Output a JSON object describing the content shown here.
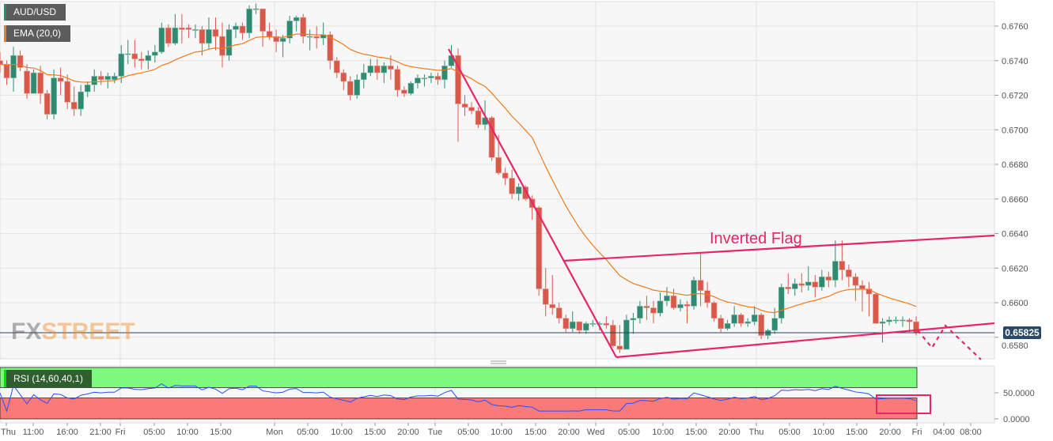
{
  "legend": {
    "symbol": "AUD/USD",
    "indicator": "EMA (20,0)",
    "rsi": "RSI (14,60,40,1)"
  },
  "watermark": {
    "fx": "FX",
    "street": "STREET"
  },
  "annotation": "Inverted Flag",
  "last_price": "0.65825",
  "colors": {
    "up": "#2f8a72",
    "down": "#d8594a",
    "ema": "#f07a1c",
    "drawing": "#e8256a",
    "rsi_line": "#2d4ef5",
    "rsi_upper_band": "#7dfa7d",
    "rsi_lower_band": "#fa7a7a",
    "price_tag": "#2b4a6b"
  },
  "chart_data": {
    "type": "candlestick",
    "instrument": "AUD/USD",
    "indicator": "EMA 20",
    "y_ticks": [
      "0.6760",
      "0.6740",
      "0.6720",
      "0.6700",
      "0.6680",
      "0.6660",
      "0.6640",
      "0.6620",
      "0.6600",
      "0.6580"
    ],
    "ylim": [
      0.6566,
      0.6775
    ],
    "rsi_ticks": [
      "50.0000",
      "0.0000"
    ],
    "rsi_levels": [
      60,
      40
    ],
    "x_ticks": [
      "Thu",
      "11:00",
      "16:00",
      "21:00",
      "Fri",
      "05:00",
      "10:00",
      "15:00",
      "Mon",
      "05:00",
      "10:00",
      "15:00",
      "20:00",
      "Tue",
      "05:00",
      "10:00",
      "15:00",
      "20:00",
      "Wed",
      "05:00",
      "10:00",
      "15:00",
      "20:00",
      "Thu",
      "05:00",
      "10:00",
      "15:00",
      "20:00",
      "Fri",
      "04:00",
      "08:00"
    ],
    "ohlc": [
      [
        0.674,
        0.6745,
        0.6733,
        0.6738
      ],
      [
        0.6738,
        0.674,
        0.6726,
        0.673
      ],
      [
        0.673,
        0.6748,
        0.6722,
        0.6743
      ],
      [
        0.6743,
        0.6746,
        0.6734,
        0.6736
      ],
      [
        0.6734,
        0.6738,
        0.6718,
        0.6721
      ],
      [
        0.6721,
        0.6735,
        0.6721,
        0.6733
      ],
      [
        0.6733,
        0.6737,
        0.6715,
        0.6721
      ],
      [
        0.6721,
        0.6723,
        0.6706,
        0.6709
      ],
      [
        0.6709,
        0.6735,
        0.6706,
        0.673
      ],
      [
        0.673,
        0.6736,
        0.672,
        0.6728
      ],
      [
        0.6728,
        0.6732,
        0.6712,
        0.6716
      ],
      [
        0.6716,
        0.6725,
        0.6708,
        0.6712
      ],
      [
        0.6712,
        0.6726,
        0.6708,
        0.6722
      ],
      [
        0.6722,
        0.6728,
        0.6719,
        0.6726
      ],
      [
        0.6726,
        0.6735,
        0.6722,
        0.6731
      ],
      [
        0.6731,
        0.6734,
        0.6726,
        0.6729
      ],
      [
        0.6729,
        0.6733,
        0.6724,
        0.6731
      ],
      [
        0.6729,
        0.6733,
        0.6727,
        0.6731
      ],
      [
        0.6731,
        0.6749,
        0.6727,
        0.6744
      ],
      [
        0.6744,
        0.6752,
        0.6738,
        0.6744
      ],
      [
        0.6744,
        0.6752,
        0.6736,
        0.6741
      ],
      [
        0.6741,
        0.6745,
        0.6735,
        0.674
      ],
      [
        0.674,
        0.6746,
        0.6735,
        0.6743
      ],
      [
        0.6743,
        0.6749,
        0.6739,
        0.6745
      ],
      [
        0.6745,
        0.6762,
        0.6744,
        0.6759
      ],
      [
        0.6759,
        0.6761,
        0.6748,
        0.675
      ],
      [
        0.675,
        0.6767,
        0.6749,
        0.6759
      ],
      [
        0.6759,
        0.6767,
        0.675,
        0.6758
      ],
      [
        0.6759,
        0.6761,
        0.6753,
        0.6758
      ],
      [
        0.6758,
        0.6761,
        0.6753,
        0.6758
      ],
      [
        0.6758,
        0.676,
        0.6743,
        0.675
      ],
      [
        0.675,
        0.6765,
        0.6747,
        0.6758
      ],
      [
        0.6758,
        0.6765,
        0.6746,
        0.6754
      ],
      [
        0.6754,
        0.6762,
        0.6736,
        0.6743
      ],
      [
        0.6743,
        0.6761,
        0.674,
        0.6758
      ],
      [
        0.6758,
        0.6762,
        0.6753,
        0.676
      ],
      [
        0.676,
        0.6762,
        0.6752,
        0.6756
      ],
      [
        0.6756,
        0.6772,
        0.6753,
        0.677
      ],
      [
        0.677,
        0.6773,
        0.6767,
        0.677
      ],
      [
        0.677,
        0.677,
        0.6748,
        0.6757
      ],
      [
        0.6757,
        0.6762,
        0.6752,
        0.6754
      ],
      [
        0.6754,
        0.6758,
        0.6745,
        0.6751
      ],
      [
        0.6751,
        0.6755,
        0.6742,
        0.6753
      ],
      [
        0.6753,
        0.6766,
        0.675,
        0.6763
      ],
      [
        0.6763,
        0.6766,
        0.6757,
        0.6765
      ],
      [
        0.6765,
        0.6767,
        0.675,
        0.6754
      ],
      [
        0.6754,
        0.6758,
        0.6746,
        0.6754
      ],
      [
        0.6754,
        0.676,
        0.6747,
        0.6753
      ],
      [
        0.6753,
        0.6762,
        0.6749,
        0.6755
      ],
      [
        0.6755,
        0.6757,
        0.6735,
        0.674
      ],
      [
        0.674,
        0.6742,
        0.673,
        0.6733
      ],
      [
        0.6733,
        0.6735,
        0.6723,
        0.6728
      ],
      [
        0.6728,
        0.6731,
        0.6717,
        0.672
      ],
      [
        0.672,
        0.6732,
        0.6718,
        0.6729
      ],
      [
        0.6729,
        0.6738,
        0.6724,
        0.6733
      ],
      [
        0.6733,
        0.6741,
        0.6731,
        0.6737
      ],
      [
        0.6737,
        0.6741,
        0.6729,
        0.6733
      ],
      [
        0.6733,
        0.6739,
        0.6727,
        0.6737
      ],
      [
        0.6737,
        0.6743,
        0.6729,
        0.6735
      ],
      [
        0.6735,
        0.6737,
        0.6719,
        0.6723
      ],
      [
        0.6723,
        0.6725,
        0.6719,
        0.6721
      ],
      [
        0.6721,
        0.6728,
        0.672,
        0.6727
      ],
      [
        0.6727,
        0.6732,
        0.6724,
        0.673
      ],
      [
        0.673,
        0.6732,
        0.6725,
        0.673
      ],
      [
        0.673,
        0.6733,
        0.6727,
        0.6731
      ],
      [
        0.6731,
        0.6733,
        0.6726,
        0.6729
      ],
      [
        0.6729,
        0.674,
        0.6724,
        0.6737
      ],
      [
        0.6737,
        0.6749,
        0.6736,
        0.6743
      ],
      [
        0.6743,
        0.6747,
        0.6693,
        0.6715
      ],
      [
        0.6715,
        0.672,
        0.6708,
        0.6713
      ],
      [
        0.6713,
        0.6716,
        0.6709,
        0.6711
      ],
      [
        0.6711,
        0.6713,
        0.6701,
        0.6703
      ],
      [
        0.6703,
        0.6717,
        0.67,
        0.6707
      ],
      [
        0.6707,
        0.6708,
        0.6682,
        0.6684
      ],
      [
        0.6684,
        0.6697,
        0.6674,
        0.6675
      ],
      [
        0.6675,
        0.6678,
        0.6668,
        0.6672
      ],
      [
        0.6672,
        0.6677,
        0.666,
        0.6663
      ],
      [
        0.6663,
        0.6669,
        0.6659,
        0.6667
      ],
      [
        0.6667,
        0.6668,
        0.6659,
        0.666
      ],
      [
        0.666,
        0.6662,
        0.6648,
        0.6655
      ],
      [
        0.6655,
        0.6656,
        0.6604,
        0.6608
      ],
      [
        0.6608,
        0.662,
        0.6592,
        0.6599
      ],
      [
        0.6599,
        0.6616,
        0.6593,
        0.6597
      ],
      [
        0.6597,
        0.66,
        0.6588,
        0.6591
      ],
      [
        0.6591,
        0.6593,
        0.6583,
        0.6585
      ],
      [
        0.6585,
        0.6595,
        0.6583,
        0.6589
      ],
      [
        0.6589,
        0.6589,
        0.6582,
        0.6584
      ],
      [
        0.6584,
        0.6589,
        0.6582,
        0.6588
      ],
      [
        0.6588,
        0.659,
        0.6586,
        0.6588
      ],
      [
        0.6588,
        0.6589,
        0.6584,
        0.6588
      ],
      [
        0.6588,
        0.6592,
        0.6585,
        0.6587
      ],
      [
        0.6587,
        0.659,
        0.6574,
        0.6575
      ],
      [
        0.6575,
        0.6587,
        0.6571,
        0.6573
      ],
      [
        0.6573,
        0.6593,
        0.6573,
        0.659
      ],
      [
        0.659,
        0.6594,
        0.6582,
        0.6591
      ],
      [
        0.6591,
        0.6601,
        0.6588,
        0.6598
      ],
      [
        0.6598,
        0.6604,
        0.659,
        0.6597
      ],
      [
        0.6597,
        0.6601,
        0.6588,
        0.6594
      ],
      [
        0.6594,
        0.6606,
        0.6592,
        0.6601
      ],
      [
        0.6601,
        0.6609,
        0.6598,
        0.6604
      ],
      [
        0.6604,
        0.6608,
        0.6596,
        0.6597
      ],
      [
        0.6597,
        0.6602,
        0.6595,
        0.6599
      ],
      [
        0.6599,
        0.6601,
        0.6588,
        0.6598
      ],
      [
        0.6598,
        0.6615,
        0.6596,
        0.6613
      ],
      [
        0.6613,
        0.6629,
        0.6598,
        0.6607
      ],
      [
        0.6607,
        0.6612,
        0.6597,
        0.66
      ],
      [
        0.66,
        0.6601,
        0.6589,
        0.6591
      ],
      [
        0.6591,
        0.6593,
        0.6583,
        0.6585
      ],
      [
        0.6585,
        0.659,
        0.6584,
        0.6588
      ],
      [
        0.6588,
        0.6598,
        0.6586,
        0.6593
      ],
      [
        0.6593,
        0.6594,
        0.6586,
        0.6588
      ],
      [
        0.6588,
        0.6591,
        0.6586,
        0.6589
      ],
      [
        0.6589,
        0.6598,
        0.6587,
        0.6593
      ],
      [
        0.6593,
        0.6594,
        0.6579,
        0.6581
      ],
      [
        0.6581,
        0.6585,
        0.6579,
        0.6584
      ],
      [
        0.6584,
        0.6597,
        0.6582,
        0.6591
      ],
      [
        0.6591,
        0.6611,
        0.6588,
        0.6609
      ],
      [
        0.6609,
        0.6617,
        0.6605,
        0.6608
      ],
      [
        0.6608,
        0.6614,
        0.6604,
        0.6611
      ],
      [
        0.6611,
        0.6617,
        0.6606,
        0.661
      ],
      [
        0.661,
        0.6621,
        0.6607,
        0.6612
      ],
      [
        0.6612,
        0.6616,
        0.6603,
        0.6609
      ],
      [
        0.6609,
        0.6619,
        0.6607,
        0.6615
      ],
      [
        0.6615,
        0.6618,
        0.6609,
        0.6613
      ],
      [
        0.6613,
        0.6636,
        0.6609,
        0.6624
      ],
      [
        0.6624,
        0.6636,
        0.6613,
        0.6619
      ],
      [
        0.6619,
        0.6622,
        0.6609,
        0.6615
      ],
      [
        0.6615,
        0.6617,
        0.6601,
        0.661
      ],
      [
        0.661,
        0.6613,
        0.6595,
        0.6608
      ],
      [
        0.6608,
        0.6612,
        0.6592,
        0.6605
      ],
      [
        0.6605,
        0.6606,
        0.6588,
        0.6588
      ],
      [
        0.6588,
        0.6591,
        0.6577,
        0.6589
      ],
      [
        0.6589,
        0.6592,
        0.6587,
        0.659
      ],
      [
        0.659,
        0.6592,
        0.6588,
        0.659
      ],
      [
        0.659,
        0.6592,
        0.6586,
        0.659
      ],
      [
        0.659,
        0.6591,
        0.6583,
        0.6589
      ],
      [
        0.6589,
        0.6592,
        0.6581,
        0.65825
      ]
    ]
  }
}
